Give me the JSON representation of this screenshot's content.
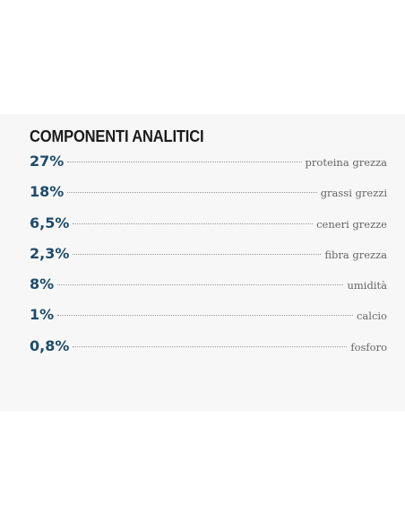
{
  "panel": {
    "title": "COMPONENTI ANALITICI",
    "rows": [
      {
        "value": "27%",
        "label": "proteina grezza"
      },
      {
        "value": "18%",
        "label": "grassi grezzi"
      },
      {
        "value": "6,5%",
        "label": "ceneri grezze"
      },
      {
        "value": "2,3%",
        "label": "fibra grezza"
      },
      {
        "value": "8%",
        "label": "umidità"
      },
      {
        "value": "1%",
        "label": "calcio"
      },
      {
        "value": "0,8%",
        "label": "fosforo"
      }
    ]
  }
}
